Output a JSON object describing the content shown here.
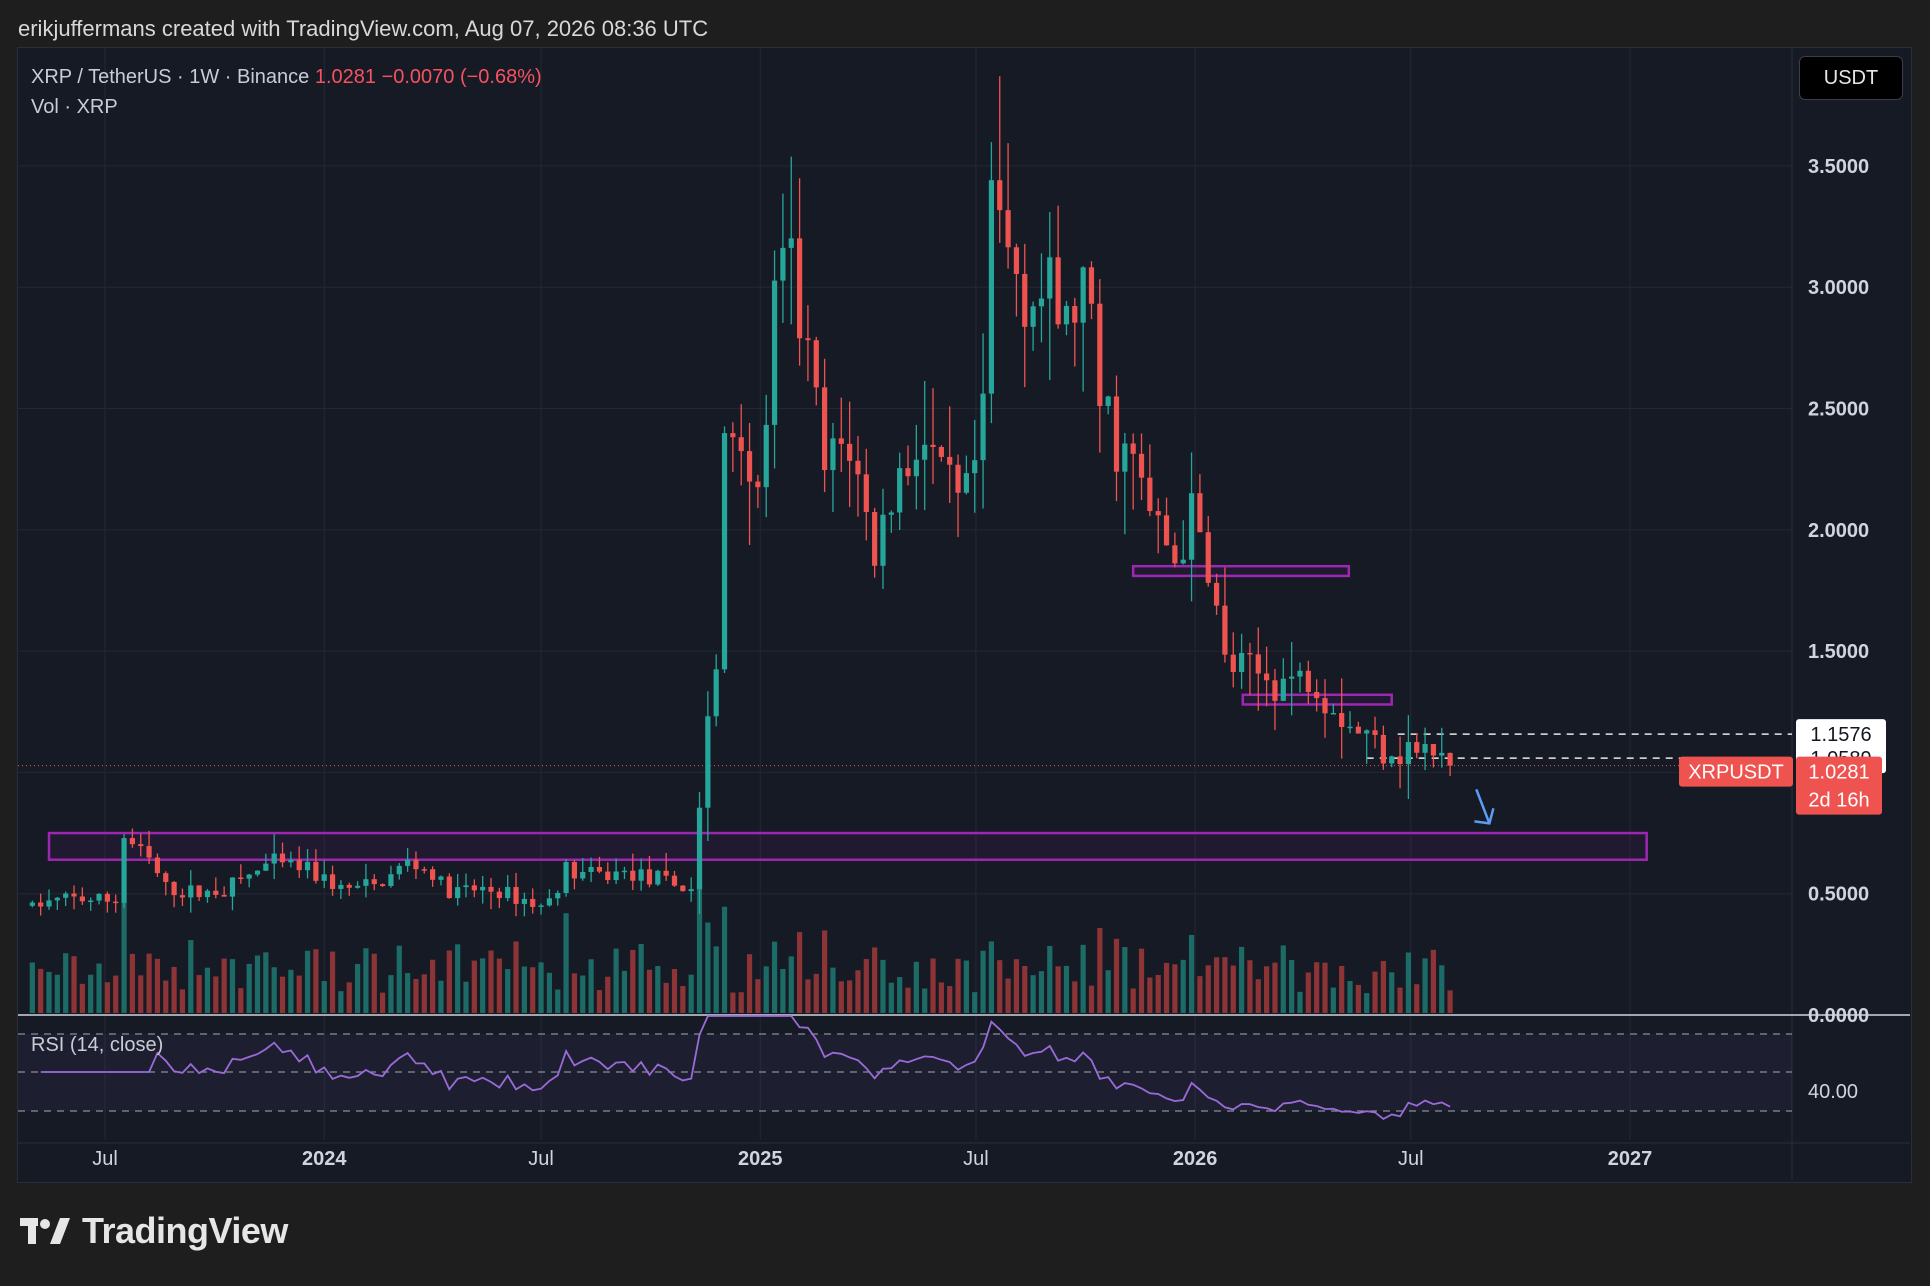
{
  "header": {
    "credit": "erikjuffermans created with TradingView.com, Aug 07, 2026 08:36 UTC"
  },
  "legend": {
    "symbol": "XRP / TetherUS · 1W · Binance",
    "last": "1.0281",
    "change": "−0.0070 (−0.68%)",
    "volume": "Vol · XRP"
  },
  "unit_button": "USDT",
  "rsi": {
    "label": "RSI (14, close)",
    "tick": "40.00"
  },
  "logo": {
    "text": "TradingView"
  },
  "colors": {
    "up": "#26a69a",
    "down": "#ef5350",
    "zone": "#9c27b0",
    "rsi": "#9a6bd8",
    "arrow": "#5b9cf6"
  },
  "chart_data": {
    "type": "candlestick",
    "symbol": "XRPUSDT",
    "interval": "1W",
    "y_axis": {
      "ticks": [
        "3.5000",
        "3.0000",
        "2.5000",
        "2.0000",
        "1.5000",
        "0.5000",
        "0.0000"
      ]
    },
    "x_axis": {
      "ticks": [
        "Jul",
        "2024",
        "Jul",
        "2025",
        "Jul",
        "2026",
        "Jul",
        "2027"
      ],
      "tick_dates": [
        "2023-07-01",
        "2024-01-01",
        "2024-07-01",
        "2025-01-01",
        "2025-07-01",
        "2026-01-01",
        "2026-07-01",
        "2027-01-01"
      ]
    },
    "price_labels": [
      {
        "text": "1.1576",
        "value": 1.1576,
        "style": "white"
      },
      {
        "text": "1.0589",
        "value": 1.0589,
        "style": "white"
      },
      {
        "text": "1.0281",
        "sub": "2d 16h",
        "tag": "XRPUSDT",
        "value": 1.0281,
        "style": "red"
      }
    ],
    "zones": [
      {
        "start": "2023-05-15",
        "end": "2027-01-15",
        "top": 0.75,
        "bottom": 0.64
      },
      {
        "start": "2025-11-10",
        "end": "2026-05-10",
        "top": 1.85,
        "bottom": 1.81
      },
      {
        "start": "2026-02-10",
        "end": "2026-06-15",
        "top": 1.32,
        "bottom": 1.28
      }
    ],
    "dashed_levels": [
      {
        "value": 1.1576,
        "start": "2026-06-20"
      },
      {
        "value": 1.0589,
        "start": "2026-05-25"
      }
    ],
    "arrow": {
      "from": [
        "2026-08-25",
        0.93
      ],
      "to": [
        "2026-09-05",
        0.79
      ]
    },
    "weekly_close_anchors": [
      [
        "2023-05-01",
        0.45
      ],
      [
        "2023-06-01",
        0.48
      ],
      [
        "2023-07-10",
        0.47
      ],
      [
        "2023-07-14",
        0.75
      ],
      [
        "2023-08-10",
        0.62
      ],
      [
        "2023-08-20",
        0.52
      ],
      [
        "2023-09-15",
        0.5
      ],
      [
        "2023-10-10",
        0.52
      ],
      [
        "2023-11-15",
        0.62
      ],
      [
        "2023-12-15",
        0.61
      ],
      [
        "2024-01-15",
        0.52
      ],
      [
        "2024-02-15",
        0.53
      ],
      [
        "2024-03-10",
        0.63
      ],
      [
        "2024-03-30",
        0.59
      ],
      [
        "2024-04-15",
        0.5
      ],
      [
        "2024-05-15",
        0.52
      ],
      [
        "2024-06-15",
        0.48
      ],
      [
        "2024-07-05",
        0.44
      ],
      [
        "2024-07-20",
        0.6
      ],
      [
        "2024-08-15",
        0.57
      ],
      [
        "2024-09-15",
        0.59
      ],
      [
        "2024-10-15",
        0.54
      ],
      [
        "2024-11-05",
        0.52
      ],
      [
        "2024-11-15",
        1.1
      ],
      [
        "2024-11-25",
        1.4
      ],
      [
        "2024-12-02",
        2.4
      ],
      [
        "2024-12-15",
        2.44
      ],
      [
        "2024-12-30",
        2.1
      ],
      [
        "2025-01-15",
        3.0
      ],
      [
        "2025-01-25",
        3.1
      ],
      [
        "2025-02-10",
        2.7
      ],
      [
        "2025-02-25",
        2.2
      ],
      [
        "2025-03-15",
        2.4
      ],
      [
        "2025-04-07",
        1.9
      ],
      [
        "2025-04-25",
        2.2
      ],
      [
        "2025-05-15",
        2.4
      ],
      [
        "2025-06-01",
        2.2
      ],
      [
        "2025-06-20",
        2.05
      ],
      [
        "2025-07-07",
        2.4
      ],
      [
        "2025-07-14",
        3.4
      ],
      [
        "2025-07-25",
        3.15
      ],
      [
        "2025-08-15",
        3.0
      ],
      [
        "2025-09-15",
        2.85
      ],
      [
        "2025-10-01",
        3.0
      ],
      [
        "2025-10-10",
        2.55
      ],
      [
        "2025-10-25",
        2.4
      ],
      [
        "2025-11-15",
        2.2
      ],
      [
        "2025-11-25",
        2.05
      ],
      [
        "2025-12-15",
        1.88
      ],
      [
        "2025-12-30",
        2.05
      ],
      [
        "2026-01-15",
        1.8
      ],
      [
        "2026-01-25",
        1.45
      ],
      [
        "2026-02-15",
        1.4
      ],
      [
        "2026-03-15",
        1.38
      ],
      [
        "2026-04-10",
        1.4
      ],
      [
        "2026-04-25",
        1.3
      ],
      [
        "2026-05-10",
        1.2
      ],
      [
        "2026-05-25",
        1.15
      ],
      [
        "2026-06-15",
        1.1
      ],
      [
        "2026-07-10",
        1.09
      ],
      [
        "2026-07-25",
        1.05
      ],
      [
        "2026-08-07",
        1.0281
      ]
    ],
    "last": 1.0281,
    "change": -0.007,
    "change_pct": -0.68
  }
}
